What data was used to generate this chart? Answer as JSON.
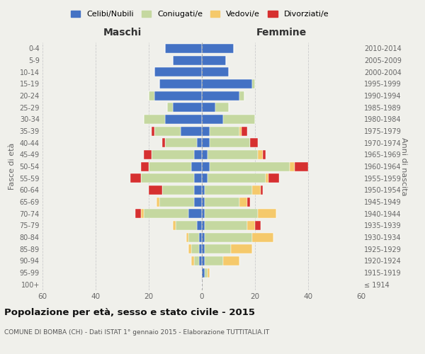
{
  "age_groups": [
    "100+",
    "95-99",
    "90-94",
    "85-89",
    "80-84",
    "75-79",
    "70-74",
    "65-69",
    "60-64",
    "55-59",
    "50-54",
    "45-49",
    "40-44",
    "35-39",
    "30-34",
    "25-29",
    "20-24",
    "15-19",
    "10-14",
    "5-9",
    "0-4"
  ],
  "birth_years": [
    "≤ 1914",
    "1915-1919",
    "1920-1924",
    "1925-1929",
    "1930-1934",
    "1935-1939",
    "1940-1944",
    "1945-1949",
    "1950-1954",
    "1955-1959",
    "1960-1964",
    "1965-1969",
    "1970-1974",
    "1975-1979",
    "1980-1984",
    "1985-1989",
    "1990-1994",
    "1995-1999",
    "2000-2004",
    "2005-2009",
    "2010-2014"
  ],
  "colors": {
    "celibe": "#4472c4",
    "coniugato": "#c5d8a0",
    "vedovo": "#f5c96b",
    "divorziato": "#d63030"
  },
  "maschi": {
    "celibe": [
      0,
      0,
      1,
      1,
      1,
      2,
      5,
      3,
      3,
      3,
      4,
      3,
      2,
      8,
      14,
      11,
      18,
      16,
      18,
      11,
      14
    ],
    "coniugato": [
      0,
      0,
      2,
      3,
      4,
      8,
      17,
      13,
      12,
      20,
      16,
      16,
      12,
      10,
      8,
      2,
      2,
      0,
      0,
      0,
      0
    ],
    "vedovo": [
      0,
      0,
      1,
      1,
      1,
      1,
      1,
      1,
      0,
      0,
      0,
      0,
      0,
      0,
      0,
      0,
      0,
      0,
      0,
      0,
      0
    ],
    "divorziato": [
      0,
      0,
      0,
      0,
      0,
      0,
      2,
      0,
      5,
      4,
      3,
      3,
      1,
      1,
      0,
      0,
      0,
      0,
      0,
      0,
      0
    ]
  },
  "femmine": {
    "celibe": [
      0,
      1,
      1,
      1,
      1,
      1,
      1,
      1,
      1,
      2,
      3,
      2,
      3,
      3,
      8,
      5,
      14,
      19,
      10,
      9,
      12
    ],
    "coniugato": [
      0,
      1,
      7,
      10,
      18,
      16,
      20,
      13,
      18,
      22,
      30,
      19,
      15,
      11,
      12,
      5,
      2,
      1,
      0,
      0,
      0
    ],
    "vedovo": [
      0,
      1,
      6,
      8,
      8,
      3,
      7,
      3,
      3,
      1,
      2,
      2,
      0,
      1,
      0,
      0,
      0,
      0,
      0,
      0,
      0
    ],
    "divorziato": [
      0,
      0,
      0,
      0,
      0,
      2,
      0,
      1,
      1,
      4,
      5,
      1,
      3,
      2,
      0,
      0,
      0,
      0,
      0,
      0,
      0
    ]
  },
  "xlim": 60,
  "title": "Popolazione per età, sesso e stato civile - 2015",
  "subtitle": "COMUNE DI BOMBA (CH) - Dati ISTAT 1° gennaio 2015 - Elaborazione TUTTITALIA.IT",
  "ylabel_left": "Fasce di età",
  "ylabel_right": "Anni di nascita",
  "xlabel_maschi": "Maschi",
  "xlabel_femmine": "Femmine",
  "legend_labels": [
    "Celibi/Nubili",
    "Coniugati/e",
    "Vedovi/e",
    "Divorziati/e"
  ],
  "background_color": "#f0f0eb"
}
